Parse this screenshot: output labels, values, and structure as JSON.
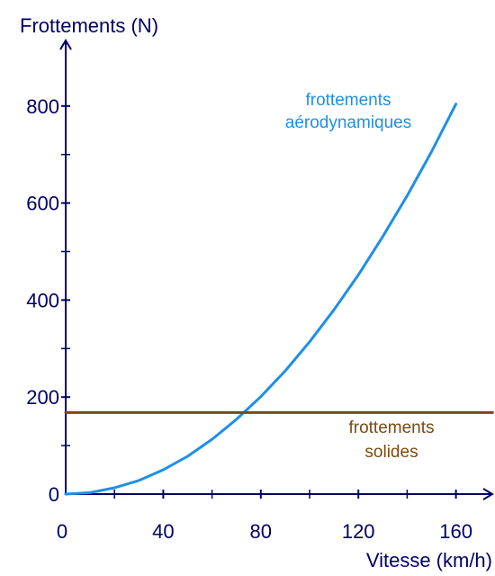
{
  "colors": {
    "axis": "#000066",
    "axis_text": "#000066",
    "aero": "#1f8fe6",
    "solid": "#7a4a10"
  },
  "chart_data": {
    "type": "line",
    "title": "",
    "xlabel": "Vitesse (km/h)",
    "ylabel": "Frottements (N)",
    "xlim": [
      0,
      175
    ],
    "ylim": [
      0,
      880
    ],
    "x_ticks": [
      0,
      40,
      80,
      120,
      160
    ],
    "y_ticks": [
      0,
      200,
      400,
      600,
      800
    ],
    "x_minor_step": 20,
    "y_minor_step": 100,
    "grid": false,
    "series": [
      {
        "name": "frottements aérodynamiques",
        "label_lines": [
          "frottements",
          "aérodynamiques"
        ],
        "color_key": "aero",
        "x": [
          0,
          10,
          20,
          30,
          40,
          50,
          60,
          70,
          80,
          90,
          100,
          110,
          120,
          130,
          140,
          150,
          160
        ],
        "y": [
          0,
          3,
          13,
          28,
          50,
          78,
          113,
          154,
          201,
          254,
          314,
          380,
          452,
          531,
          615,
          706,
          804
        ]
      },
      {
        "name": "frottements solides",
        "label_lines": [
          "frottements",
          "solides"
        ],
        "color_key": "solid",
        "x": [
          0,
          175
        ],
        "y": [
          168,
          168
        ]
      }
    ]
  }
}
